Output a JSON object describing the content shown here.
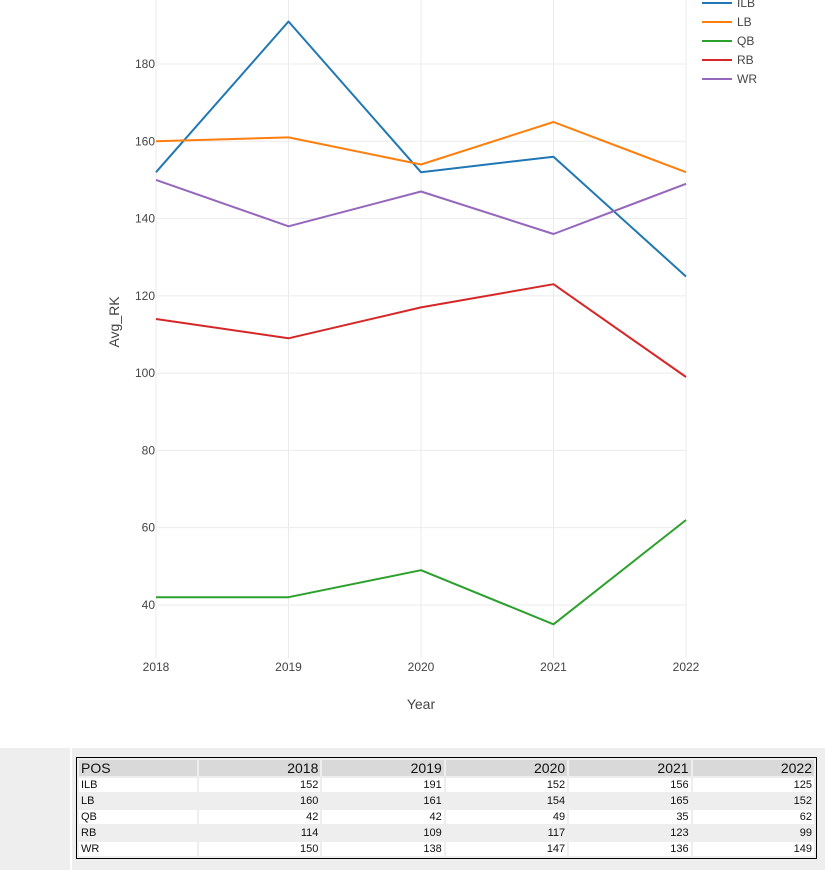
{
  "chart_data": {
    "type": "line",
    "title": "",
    "xlabel": "Year",
    "ylabel": "Avg_RK",
    "x": [
      2018,
      2019,
      2020,
      2021,
      2022
    ],
    "x_tick_labels": [
      "2018",
      "2019",
      "2020",
      "2021",
      "2022"
    ],
    "y_tick_values": [
      40,
      60,
      80,
      100,
      120,
      140,
      160,
      180
    ],
    "y_tick_labels": [
      "40",
      "60",
      "80",
      "100",
      "120",
      "140",
      "160",
      "180"
    ],
    "grid": true,
    "legend_position": "top-right",
    "series": [
      {
        "name": "ILB",
        "color": "#1f77b4",
        "values": [
          152,
          191,
          152,
          156,
          125
        ]
      },
      {
        "name": "LB",
        "color": "#ff7f0e",
        "values": [
          160,
          161,
          154,
          165,
          152
        ]
      },
      {
        "name": "QB",
        "color": "#2ca02c",
        "values": [
          42,
          42,
          49,
          35,
          62
        ]
      },
      {
        "name": "RB",
        "color": "#d62728",
        "values": [
          114,
          109,
          117,
          123,
          99
        ]
      },
      {
        "name": "WR",
        "color": "#9467bd",
        "values": [
          150,
          138,
          147,
          136,
          149
        ]
      }
    ]
  },
  "table": {
    "headers": [
      "POS",
      "2018",
      "2019",
      "2020",
      "2021",
      "2022"
    ],
    "rows": [
      [
        "ILB",
        "152",
        "191",
        "152",
        "156",
        "125"
      ],
      [
        "LB",
        "160",
        "161",
        "154",
        "165",
        "152"
      ],
      [
        "QB",
        "42",
        "42",
        "49",
        "35",
        "62"
      ],
      [
        "RB",
        "114",
        "109",
        "117",
        "123",
        "99"
      ],
      [
        "WR",
        "150",
        "138",
        "147",
        "136",
        "149"
      ]
    ]
  }
}
